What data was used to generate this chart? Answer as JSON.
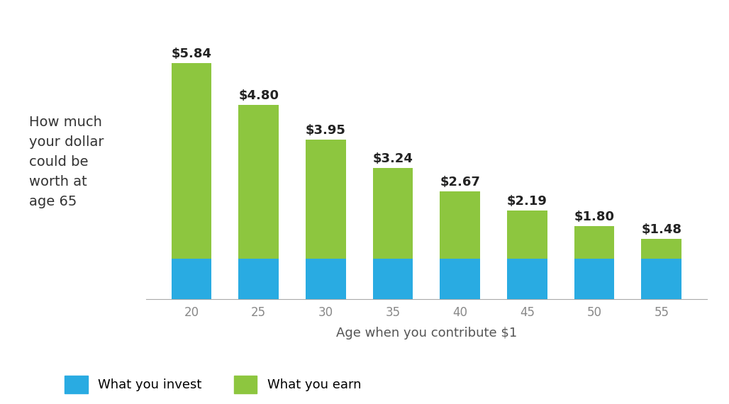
{
  "ages": [
    20,
    25,
    30,
    35,
    40,
    45,
    50,
    55
  ],
  "totals": [
    5.84,
    4.8,
    3.95,
    3.24,
    2.67,
    2.19,
    1.8,
    1.48
  ],
  "invest": [
    1.0,
    1.0,
    1.0,
    1.0,
    1.0,
    1.0,
    1.0,
    1.0
  ],
  "color_invest": "#29ABE2",
  "color_earn": "#8DC63F",
  "bar_width": 0.6,
  "ylim": [
    0,
    6.5
  ],
  "xlabel": "Age when you contribute $1",
  "ylabel_lines": [
    "How much",
    "your dollar",
    "could be",
    "worth at",
    "age 65"
  ],
  "legend_invest": "What you invest",
  "legend_earn": "What you earn",
  "label_fontsize": 13,
  "value_fontsize": 13,
  "xlabel_fontsize": 13,
  "ylabel_fontsize": 14,
  "tick_fontsize": 12,
  "background_color": "#FFFFFF"
}
